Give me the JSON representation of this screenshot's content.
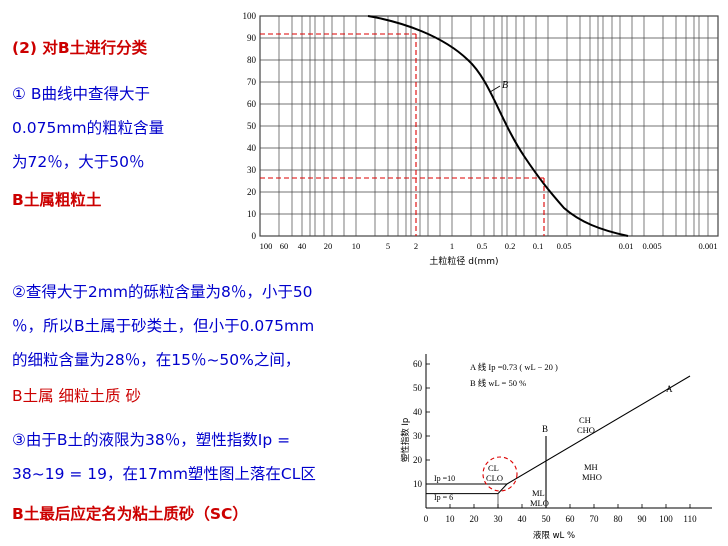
{
  "text": {
    "t1": "(2) 对B土进行分类",
    "t2": "① B曲线中查得大于",
    "t3": "0.075mm的粗粒含量",
    "t4": "为72％，大于50％",
    "t5": "B土属粗粒土",
    "t6": "②查得大于2mm的砾粒含量为8％，小于50",
    "t7": "％，所以B土属于砂类土，但小于0.075mm",
    "t8": "的细粒含量为28％，在15％~50%之间，",
    "t9": "B土属 细粒土质 砂",
    "t10": "③由于B土的液限为38％，塑性指数Ip =",
    "t11": "38~19 = 19，在17mm塑性图上落在CL区",
    "t12": "B土最后应定名为粘土质砂（SC）"
  },
  "grading_chart": {
    "xlabel": "土粒粒径 d(mm)",
    "curve_label": "B",
    "y_ticks": [
      "100",
      "90",
      "80",
      "70",
      "60",
      "50",
      "40",
      "30",
      "20",
      "10",
      "0"
    ],
    "x_ticks": [
      "100",
      "60",
      "40",
      "20",
      "10",
      "5",
      "2",
      "1",
      "0.5",
      "0.2",
      "0.1",
      "0.05",
      "0.01",
      "0.005",
      "0.001"
    ],
    "markers": [
      "92 at 2mm",
      "28 at 0.075mm"
    ]
  },
  "plasticity_chart": {
    "ylabel": "塑性指数 Ip",
    "xlabel": "液限 wL %",
    "y_ticks": [
      "60",
      "50",
      "40",
      "30",
      "20",
      "10"
    ],
    "x_ticks": [
      "0",
      "10",
      "20",
      "30",
      "40",
      "50",
      "60",
      "70",
      "80",
      "90",
      "100",
      "110"
    ],
    "legend_a": "A 线  Ip =0.73 ( wL − 20 )",
    "legend_b": "B 线  wL = 50 %",
    "ip10": "Ip =10",
    "ip6": "Ip = 6",
    "zone_ch": "CH",
    "zone_cho": "CHO",
    "zone_cl": "CL",
    "zone_clo": "CLO",
    "zone_mh": "MH",
    "zone_mho": "MHO",
    "zone_ml": "ML",
    "zone_mlo": "MLO",
    "line_a": "A",
    "line_b": "B"
  }
}
